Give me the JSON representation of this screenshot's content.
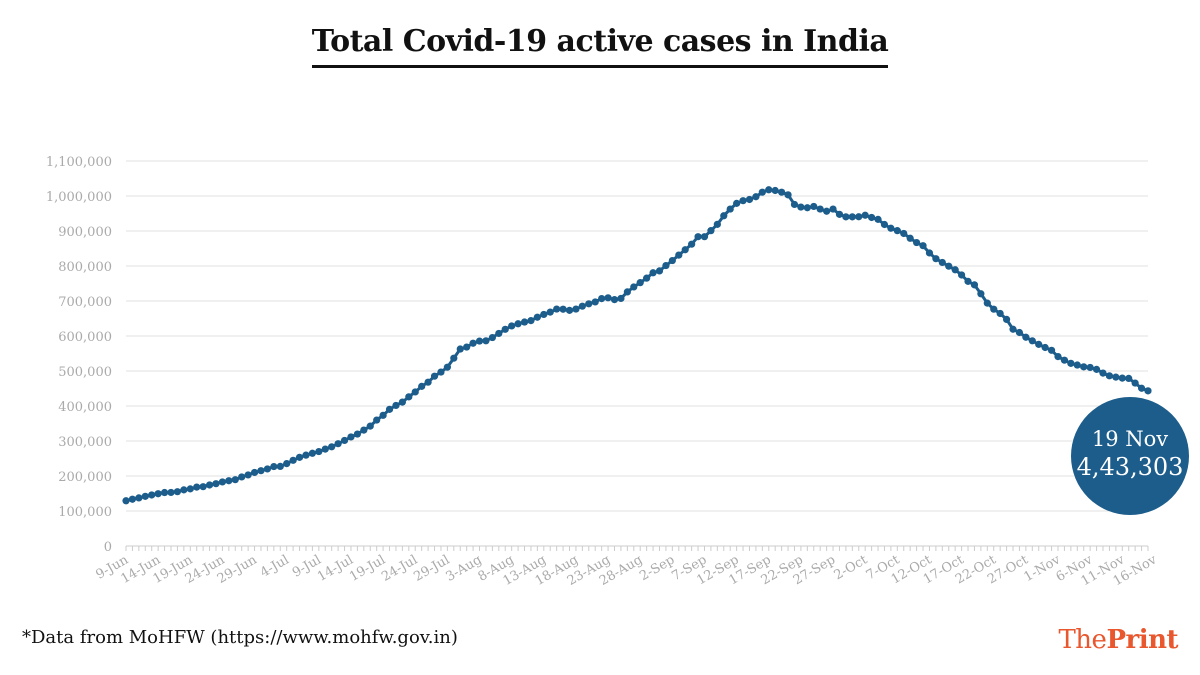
{
  "page": {
    "title": "Total Covid-19 active cases in India",
    "footnote": "*Data from MoHFW (https://www.mohfw.gov.in)",
    "brand_prefix": "The",
    "brand_name": "Print",
    "callout_date": "19 Nov",
    "callout_value": "4,43,303"
  },
  "colors": {
    "line": "#1c5d8c",
    "marker": "#1c5d8c",
    "grid": "#e2e2e2",
    "axis_text": "#aaaaaa",
    "callout_bg": "#1c5d8c",
    "brand": "#e8572d"
  },
  "chart_data": {
    "type": "line",
    "title": "Total Covid-19 active cases in India",
    "xlabel": "",
    "ylabel": "",
    "ylim": [
      0,
      1100000
    ],
    "yticks": [
      0,
      100000,
      200000,
      300000,
      400000,
      500000,
      600000,
      700000,
      800000,
      900000,
      1000000,
      1100000
    ],
    "ytick_labels": [
      "0",
      "100,000",
      "200,000",
      "300,000",
      "400,000",
      "500,000",
      "600,000",
      "700,000",
      "800,000",
      "900,000",
      "1,000,000",
      "1,100,000"
    ],
    "xtick_labels": [
      "9-Jun",
      "14-Jun",
      "19-Jun",
      "24-Jun",
      "29-Jun",
      "4-Jul",
      "9-Jul",
      "14-Jul",
      "19-Jul",
      "24-Jul",
      "29-Jul",
      "3-Aug",
      "8-Aug",
      "13-Aug",
      "18-Aug",
      "23-Aug",
      "28-Aug",
      "2-Sep",
      "7-Sep",
      "12-Sep",
      "17-Sep",
      "22-Sep",
      "27-Sep",
      "2-Oct",
      "7-Oct",
      "12-Oct",
      "17-Oct",
      "22-Oct",
      "27-Oct",
      "1-Nov",
      "6-Nov",
      "11-Nov",
      "16-Nov"
    ],
    "x_start": "9-Jun",
    "x_end": "19-Nov",
    "grid": true,
    "legend": "none",
    "series": [
      {
        "values": [
          129215,
          133632,
          137448,
          141842,
          145779,
          149348,
          152791,
          153106,
          155227,
          160384,
          163248,
          168269,
          169451,
          174387,
          178014,
          183022,
          186514,
          189463,
          197387,
          203051,
          210120,
          215125,
          220114,
          226947,
          227439,
          235433,
          244814,
          253287,
          259557,
          264944,
          269789,
          276882,
          283407,
          292258,
          301609,
          311565,
          319840,
          331146,
          342473,
          359860,
          373379,
          390459,
          401579,
          411133,
          426167,
          440135,
          456071,
          468002,
          485114,
          496988,
          510920,
          536590,
          562778,
          568430,
          579357,
          585587,
          586298,
          595501,
          607384,
          619088,
          628747,
          634945,
          639929,
          643948,
          653622,
          661595,
          668220,
          676900,
          676514,
          673166,
          676900,
          685191,
          692028,
          697330,
          706844,
          709142,
          703948,
          707267,
          725991,
          740182,
          752424,
          765302,
          780649,
          785996,
          801282,
          815538,
          831124,
          846395,
          862320,
          883697,
          883697,
          900974,
          919018,
          943480,
          962640,
          978901,
          986598,
          990061,
          997834,
          1010824,
          1017754,
          1015681,
          1010824,
          1003299,
          975861,
          968377,
          966382,
          970116,
          962640,
          956402,
          962640,
          947576,
          940441,
          940441,
          940705,
          944996,
          938622,
          933185,
          918532,
          907883,
          900974,
          892930,
          879189,
          866978,
          858003,
          837276,
          820916,
          810227,
          799429,
          789180,
          774355,
          756030,
          746122,
          720628,
          693956,
          676650,
          664365,
          647432,
          619238,
          610013,
          596386,
          586289,
          576099,
          567127,
          559054,
          541124,
          530870,
          521859,
          517071,
          511852,
          510195,
          504665,
          494009,
          486186,
          482546,
          479747,
          478827,
          465478,
          450718,
          443303
        ]
      }
    ]
  }
}
